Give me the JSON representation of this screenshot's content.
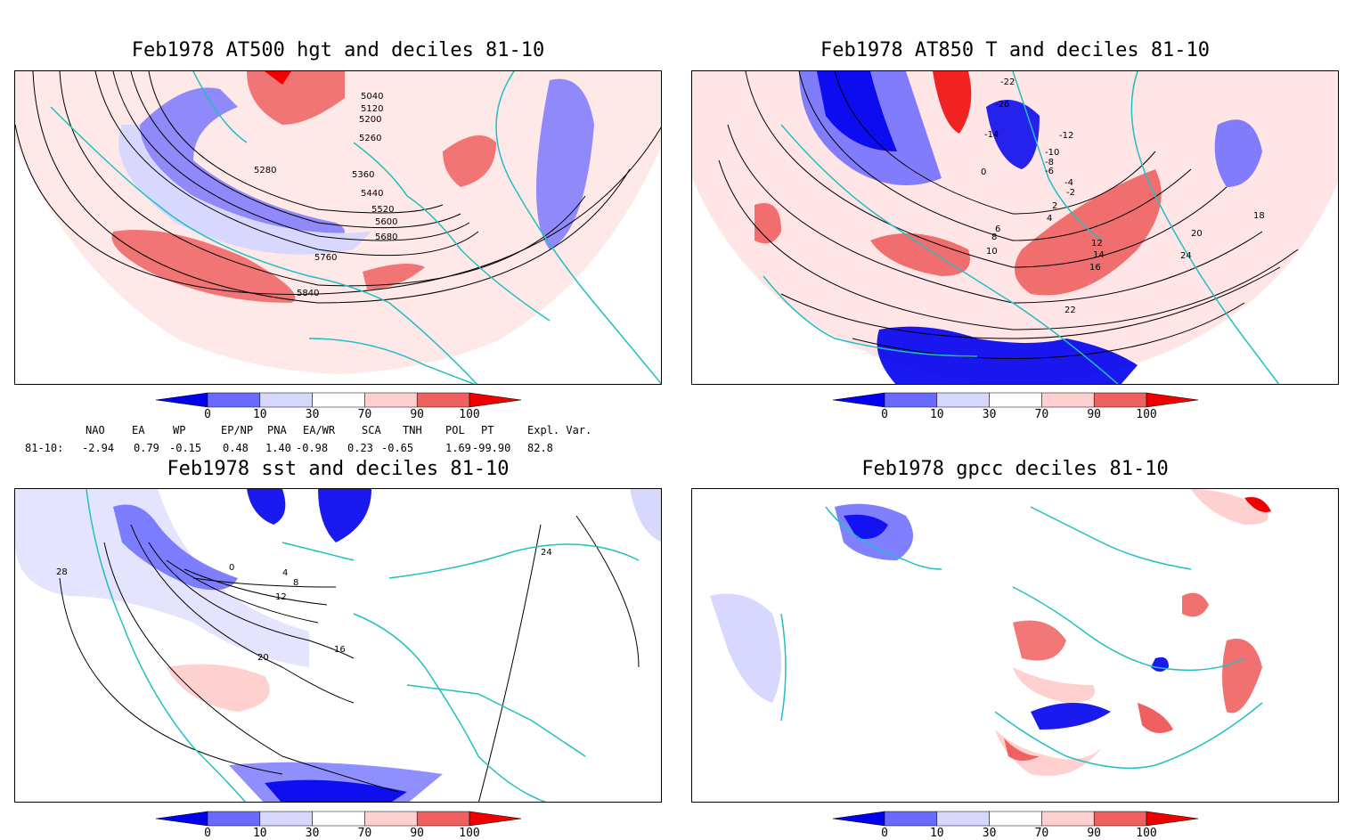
{
  "panels": [
    {
      "title": "Feb1978 AT500 hgt and deciles 81-10"
    },
    {
      "title": "Feb1978 AT850 T and deciles 81-10"
    },
    {
      "title": "Feb1978 sst and deciles 81-10"
    },
    {
      "title": "Feb1978 gpcc deciles 81-10"
    }
  ],
  "colorbar": {
    "labels": [
      "0",
      "10",
      "30",
      "70",
      "90",
      "100"
    ],
    "colors": [
      "#0000ee",
      "#6a6aff",
      "#d8d8ff",
      "#ffffff",
      "#ffd0d0",
      "#f06060",
      "#ee0000"
    ]
  },
  "contours": {
    "hgt": [
      "5040",
      "5120",
      "5200",
      "5260",
      "5280",
      "5360",
      "5440",
      "5520",
      "5600",
      "5680",
      "5760",
      "5840"
    ],
    "t850": [
      "-22",
      "-26",
      "-14",
      "-12",
      "-10",
      "-8",
      "-6",
      "-4",
      "-2",
      "0",
      "2",
      "4",
      "6",
      "8",
      "10",
      "12",
      "14",
      "16",
      "18",
      "20",
      "22",
      "24"
    ],
    "sst": [
      "0",
      "4",
      "8",
      "12",
      "16",
      "20",
      "24",
      "28"
    ]
  },
  "indices": {
    "row_label": "81-10:",
    "headers": [
      "NAO",
      "EA",
      "WP",
      "EP/NP",
      "PNA",
      "EA/WR",
      "SCA",
      "TNH",
      "POL",
      "PT",
      "Expl. Var."
    ],
    "values": [
      "-2.94",
      "0.79",
      "-0.15",
      "0.48",
      "1.40",
      "-0.98",
      "0.23",
      "-0.65",
      "1.69",
      "-99.90",
      "82.8"
    ]
  },
  "colors": {
    "coast": "#20c0c0",
    "contour": "#000000"
  }
}
